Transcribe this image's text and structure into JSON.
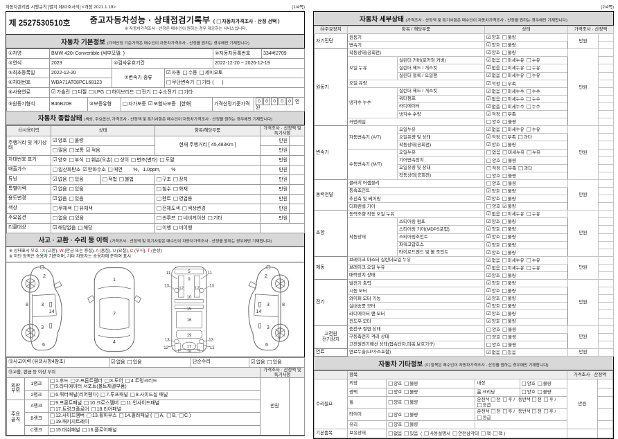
{
  "p1": {
    "meta": {
      "left": "자동차관리법 시행규칙 [별지 제82호서식] <개정 2021.1.19>",
      "right": "(1/4쪽)"
    },
    "doc_no": "제 2527530510호",
    "title": {
      "main": "중고자동차성능 · 상태점검기록부",
      "option": [
        {
          "pre": "( ",
          "t": "자동차가격조사 · 산정 선택",
          "post": " )"
        }
      ],
      "note": "※ 자동차가격조사 · 산정은 매수인이 원하는 경우 제공하는 서비스입니다."
    },
    "basic": {
      "header": "자동차 기본정보",
      "note": "(가격산정 기준가격은 매수인이 자동차가격조사 · 산정을 원하는 경우에만 기재합니다)",
      "car_label": "①차명",
      "car": "BMW 420i Convertible (세부모델: )",
      "reg_label": "②자동차등록번호",
      "reg": "334버2709",
      "year_label": "③연식",
      "year": "2023",
      "valid_label": "④검사유효기간",
      "valid": "2022-12-20 ~ 2026-12-19",
      "first_label": "⑤최초등록일",
      "first": "2022-12-20",
      "vin_label": "⑥차대번호",
      "vin": "WBA71AT08PCL68123",
      "trans_label": "⑦변속기 종류",
      "trans1": [
        {
          "t": "자동",
          "c": true
        },
        {
          "t": "수동"
        },
        {
          "t": "세미오토"
        }
      ],
      "trans2": [
        {
          "t": "무단변속기"
        },
        {
          "t": "기타",
          "post": " (      )"
        }
      ],
      "fuel_label": "⑧사용연료",
      "fuel": [
        {
          "t": "가솔린",
          "c": true
        },
        {
          "t": "디젤"
        },
        {
          "t": "LPG"
        },
        {
          "t": "하이브리드"
        },
        {
          "t": "전기"
        },
        {
          "t": "수소전기"
        },
        {
          "t": "기타"
        }
      ],
      "engine_label": "⑨원동기형식",
      "engine": "B46B20B",
      "warranty_label": "⑩보증유형",
      "warranty": [
        {
          "t": "자가보증"
        },
        {
          "t": "보험사보증",
          "c": true,
          "post": "   [한화]"
        }
      ],
      "base_price_label": "가격산정기준가격",
      "digits": [
        "0",
        "0",
        "0",
        "0",
        "0"
      ],
      "unit": "만원"
    },
    "comp": {
      "header": "자동차 종합상태",
      "note": "(색상, 주요옵션, 가격조사 · 산정액 및 특기사항은 매수인이 자동차가격조사 · 산정을 원하는 경우에만 기재합니다)",
      "col_use": "⑪사용이력",
      "col_state": "상태",
      "col_item": "항목/해당부품",
      "col_price": "가격조사 · 산정액 및 특기사항",
      "price": "만원",
      "mileage": {
        "label": "주행거리 및 계기상태",
        "o1": [
          {
            "t": "양호",
            "c": true
          },
          {
            "t": "불량"
          }
        ],
        "o2": [
          {
            "t": "많음"
          },
          {
            "t": "보통"
          },
          {
            "t": "적음",
            "c": true
          }
        ],
        "current": "현재 주행거리 [ 45,483Km ]"
      },
      "vin": {
        "label": "차대번호 표기",
        "o": [
          {
            "t": "양호",
            "c": true
          },
          {
            "t": "부식"
          },
          {
            "t": "훼손(오손)"
          },
          {
            "t": "상이"
          },
          {
            "t": "변조(변타)"
          },
          {
            "t": "도말"
          }
        ]
      },
      "emission": {
        "label": "배출가스",
        "o": [
          {
            "t": "일산화탄소"
          },
          {
            "t": "탄화수소",
            "c": true
          },
          {
            "t": "매연",
            "post": "        %,   1.0ppm,        %"
          }
        ]
      },
      "tuning": {
        "label": "튜닝",
        "o1": [
          {
            "t": "없음",
            "c": true
          },
          {
            "t": "있음"
          }
        ],
        "o2": [
          {
            "t": "적법"
          },
          {
            "t": "불법"
          }
        ],
        "o3": [
          {
            "t": "구조"
          },
          {
            "t": "장치"
          }
        ]
      },
      "special": {
        "label": "특별이력",
        "o1": [
          {
            "t": "없음",
            "c": true
          },
          {
            "t": "있음"
          }
        ],
        "o2": [
          {
            "t": "침수"
          },
          {
            "t": "화재"
          }
        ]
      },
      "usage": {
        "label": "용도변경",
        "o1": [
          {
            "t": "없음",
            "c": true
          },
          {
            "t": "있음"
          }
        ],
        "o2": [
          {
            "t": "렌트"
          },
          {
            "t": "영업용"
          }
        ]
      },
      "color": {
        "label": "색상",
        "o1": [
          {
            "t": "무채색"
          },
          {
            "t": "유채색"
          }
        ],
        "o2": [
          {
            "t": "전체도색"
          },
          {
            "t": "색상변경"
          }
        ]
      },
      "opt": {
        "label": "주요옵션",
        "o1": [
          {
            "t": "없음"
          },
          {
            "t": "있음"
          }
        ],
        "o2": [
          {
            "t": "썬루프"
          },
          {
            "t": "네비게이션"
          },
          {
            "t": "기타"
          }
        ]
      },
      "recall": {
        "label": "리콜대상",
        "o1": [
          {
            "t": "해당없음",
            "c": true
          },
          {
            "t": "해당"
          }
        ],
        "o2": [
          {
            "t": "이행"
          },
          {
            "t": "미이행"
          }
        ]
      }
    },
    "acc": {
      "header": "사고 · 교환 · 수리 등 이력",
      "note": "(가격조사 · 산정액 및 특기사항은 매수인이 자동차가격조사 · 산정을 원하는 경우에만 기재합니다)",
      "legend1": [
        {
          "t": "※ 상태표시 부호 : "
        },
        {
          "t": "X",
          "red": true
        },
        {
          "t": " (교환), "
        },
        {
          "t": "W",
          "red": true
        },
        {
          "t": " (판금 또는 용접), "
        },
        {
          "t": "A",
          "red": true
        },
        {
          "t": " (흠집), "
        },
        {
          "t": "U",
          "red": true
        },
        {
          "t": " (요철), "
        },
        {
          "t": "C",
          "red": true
        },
        {
          "t": " (부식), "
        },
        {
          "t": "T",
          "red": true
        },
        {
          "t": " (손상)"
        }
      ],
      "legend2": "※ 하단 항목은 승용차 기준이며, 기타 자동차는 승용차에 준하여 표시",
      "acc_label": "⑫사고이력 (유의사항4참조)",
      "acc_o": [
        {
          "t": "없음",
          "c": true
        },
        {
          "t": "있음"
        }
      ],
      "simple_label": "단순수리",
      "simple_o": [
        {
          "t": "없음",
          "c": true
        },
        {
          "t": "있음"
        }
      ],
      "panel_label": "⑬교환, 판금 등 이상 부위",
      "panel_price": "가격조사 · 산정액 및 특기사항",
      "g1a": "외판",
      "g1b": "부위",
      "g2a": "주요",
      "g2b": "골격",
      "rank1": "1랭크",
      "rank2": "2랭크",
      "rankA": "A랭크",
      "rankB": "B랭크",
      "rankC": "C랭크",
      "r1l1": [
        {
          "t": "1.후드"
        },
        {
          "t": "2.프론트휀더"
        },
        {
          "t": "3.도어"
        },
        {
          "t": "4.트렁크리드"
        }
      ],
      "r1l2": [
        {
          "t": "5.라디에이터 서포트(볼트체결부품)"
        }
      ],
      "r2": [
        {
          "t": "6.쿼터패널(리어휀다)"
        },
        {
          "t": "7.루프패널"
        },
        {
          "t": "8.사이드실 패널"
        }
      ],
      "rAl1": [
        {
          "t": "9.프론트패널"
        },
        {
          "t": "10.크로스멤버"
        },
        {
          "t": "11.인사이드패널"
        }
      ],
      "rAl2": [
        {
          "t": "17.트렁크플로어"
        },
        {
          "t": "18.리어패널"
        }
      ],
      "rBl1": [
        {
          "t": "12.사이드멤버"
        },
        {
          "t": "13.휠하우스"
        },
        {
          "t": "14.필러패널",
          "post": " ("
        },
        {
          "t": "A",
          "post": ","
        },
        {
          "t": "B",
          "post": ","
        },
        {
          "t": "C",
          "post": " )"
        }
      ],
      "rBl2": [
        {
          "t": "19.패키지트레이"
        }
      ],
      "rC": [
        {
          "t": "15.대쉬패널"
        },
        {
          "t": "16.플로어패널"
        }
      ],
      "price": "만원"
    },
    "diag": {
      "side": [
        "2",
        "8",
        "3",
        "14",
        "3",
        "6"
      ],
      "top": [
        "1",
        "7",
        "4"
      ],
      "bottom": [
        "5",
        "9",
        "11",
        "11",
        "12",
        "12",
        "13",
        "13",
        "10",
        "15",
        "16",
        "19",
        "13",
        "13",
        "12",
        "12",
        "17",
        "18"
      ]
    }
  },
  "p2": {
    "meta_right": "(2/4쪽)",
    "sets": {
      "gb1": [
        {
          "t": "양호",
          "c": true
        },
        {
          "t": "불량"
        }
      ],
      "gb0": [
        {
          "t": "양호"
        },
        {
          "t": "불량"
        }
      ],
      "gbBad": [
        {
          "t": "양호"
        },
        {
          "t": "불량",
          "c": true
        }
      ],
      "lk1": [
        {
          "t": "없음",
          "c": true
        },
        {
          "t": "미세누유"
        },
        {
          "t": "누유"
        }
      ],
      "lk0": [
        {
          "t": "없음"
        },
        {
          "t": "미세누유"
        },
        {
          "t": "누유"
        }
      ],
      "cl1": [
        {
          "t": "없음",
          "c": true
        },
        {
          "t": "미세누수"
        },
        {
          "t": "누수"
        }
      ],
      "lv1": [
        {
          "t": "적정",
          "c": true
        },
        {
          "t": "부족"
        }
      ],
      "am1": [
        {
          "t": "적정",
          "c": true
        },
        {
          "t": "부족"
        },
        {
          "t": "과다"
        }
      ],
      "am0": [
        {
          "t": "적정"
        },
        {
          "t": "부족"
        },
        {
          "t": "과다"
        }
      ],
      "ex1": [
        {
          "t": "없음",
          "c": true
        },
        {
          "t": "있음"
        }
      ]
    },
    "detail": {
      "header": "자동차 세부상태",
      "note": "(가격조사 · 산정액 및 특기사항은 매수인이 자동차가격조사 · 산정을 원하는 경우에만 기재합니다)",
      "col_dev": "⑭주요장치",
      "col_item": "항목 / 해당부품",
      "col_state": "상태",
      "col_price": "가격조사 · 산정액",
      "price": "만원",
      "dev1": "자기진단",
      "dev2": "원동기",
      "dev3": "변속기",
      "dev4": "동력전달",
      "dev5": "조향",
      "dev6": "제동",
      "dev7": "전기",
      "dev8a": "고전원",
      "dev8b": "전기장치",
      "dev9": "연료",
      "s1r1": "원동기",
      "s1r2": "변속기",
      "r_idle": "작동상태(공회전)",
      "r_oil_leak": "오일 누유",
      "r_cyl_cover": "실린더 커버(로커암 커버)",
      "r_cyl_head": "실린더 헤드 / 개스킷",
      "r_cyl_block": "실린더 블록 / 오일팬",
      "r_oil_lvl": "오일 유량",
      "r_cool_leak": "냉각수 누수",
      "r_water_pump": "워터펌프",
      "r_radiator": "라디에이터",
      "r_cool_lvl": "냉각수 수량",
      "r_common": "커먼레일",
      "r_at": "자동변속기 (A/T)",
      "r_mt": "수동변속기 (M/T)",
      "r_oil": "오일누유",
      "r_oil_state": "오일유량 및 상태",
      "r_gear": "기어변속장치",
      "r_clutch": "클러치 어셈블리",
      "r_cv": "등속죠인트",
      "r_shaft": "추진축 및 베어링",
      "r_diff": "디퍼렌셜 기어",
      "r_ps_leak": "동력조향 작동 오일 누유",
      "r_work": "작동상태",
      "r_st_pump": "스티어링 펌프",
      "r_st_gear": "스티어링 기어(MDPS포함)",
      "r_st_joint": "스티어링조인트",
      "r_ps_hose": "파워고압호스",
      "r_tie": "타이로드엔드 및 볼 조인트",
      "r_brk_master": "브레이크 마스터 실린더오일 누유",
      "r_brk_oil": "브레이크 오일 누유",
      "r_booster": "배력장치 상태",
      "r_alt": "발전기 출력",
      "r_starter": "시동 모터",
      "r_wiper": "와이퍼 모터 기능",
      "r_blower": "실내송풍 모터",
      "r_fan": "라디에이터 팬 모터",
      "r_window": "윈도우 모터",
      "r_charge": "충전구 절연 상태",
      "r_battery": "구동축전지 격리 상태",
      "r_wiring": "고전원전기배선 상태(접속단자,피복,보호기구)",
      "r_fuel": "연료누출(LP가스포함)"
    },
    "etc": {
      "header": "자동차 기타정보",
      "note": "(이 항목은 매수인이 자동차가격조사 · 산정을 원하는 경우에만 기재합니다)",
      "col_item": "항목",
      "col_price": "가격조사 · 산정액",
      "price": "만원",
      "dev_repair": "수리필요",
      "dev_basic": "기본품목",
      "r_ext": "외장",
      "r_int": "내장",
      "r_polish": "광택",
      "r_room": "룸 크리닝",
      "r_wheel": "휠",
      "r_tire": "타이어",
      "r_glass": "유리",
      "r_hold": "보유상태",
      "gb": [
        {
          "t": "양호"
        },
        {
          "t": "불량"
        }
      ],
      "wheel_o": [
        {
          "pre": "운전석 ",
          "t": "전"
        },
        {
          "t": "후",
          "post": " /"
        },
        {
          "pre": " 동반석 ",
          "t": "전"
        },
        {
          "t": "후",
          "post": " /"
        },
        {
          "t": "응급"
        }
      ],
      "basic_o": [
        {
          "t": "없음"
        },
        {
          "t": "있음",
          "post": "  ("
        },
        {
          "t": "사용설명서"
        },
        {
          "t": "안전삼각대"
        },
        {
          "t": "잭"
        },
        {
          "t": "잭",
          "post": " )"
        }
      ]
    }
  }
}
